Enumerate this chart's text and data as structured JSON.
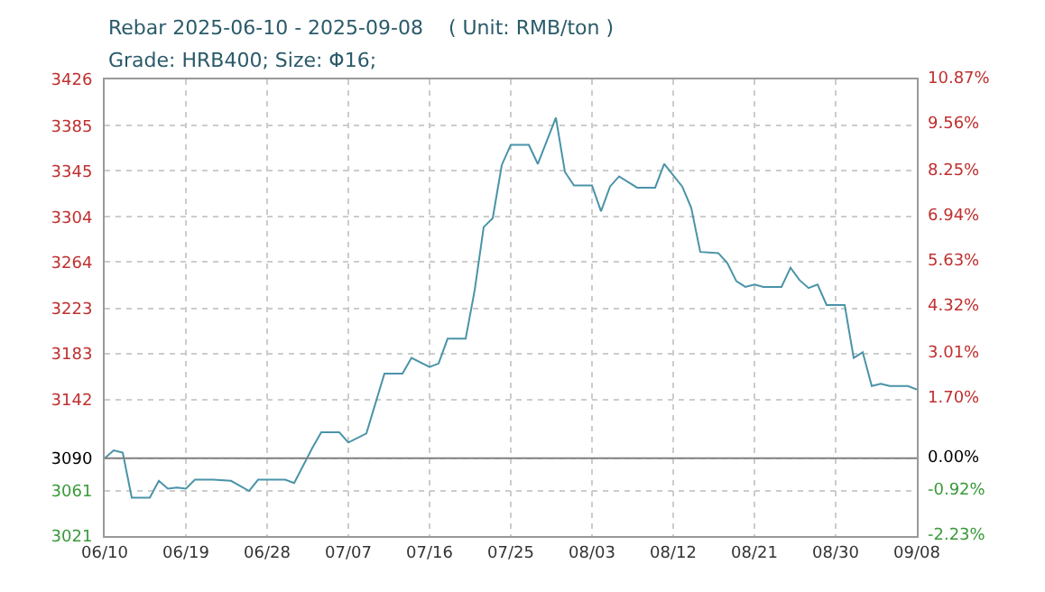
{
  "chart_data": {
    "type": "line",
    "title": "Rebar 2025-06-10 - 2025-09-08    ( Unit: RMB/ton )",
    "subtitle": "Grade: HRB400; Size: Φ16;",
    "x": [
      "2025-06-10",
      "2025-06-11",
      "2025-06-12",
      "2025-06-13",
      "2025-06-15",
      "2025-06-16",
      "2025-06-17",
      "2025-06-18",
      "2025-06-19",
      "2025-06-20",
      "2025-06-22",
      "2025-06-24",
      "2025-06-26",
      "2025-06-27",
      "2025-06-30",
      "2025-07-01",
      "2025-07-03",
      "2025-07-04",
      "2025-07-06",
      "2025-07-07",
      "2025-07-09",
      "2025-07-11",
      "2025-07-13",
      "2025-07-14",
      "2025-07-16",
      "2025-07-17",
      "2025-07-18",
      "2025-07-20",
      "2025-07-21",
      "2025-07-22",
      "2025-07-23",
      "2025-07-24",
      "2025-07-25",
      "2025-07-27",
      "2025-07-28",
      "2025-07-30",
      "2025-07-31",
      "2025-08-01",
      "2025-08-03",
      "2025-08-04",
      "2025-08-05",
      "2025-08-06",
      "2025-08-08",
      "2025-08-10",
      "2025-08-11",
      "2025-08-13",
      "2025-08-14",
      "2025-08-15",
      "2025-08-17",
      "2025-08-18",
      "2025-08-19",
      "2025-08-20",
      "2025-08-21",
      "2025-08-22",
      "2025-08-24",
      "2025-08-25",
      "2025-08-26",
      "2025-08-27",
      "2025-08-28",
      "2025-08-29",
      "2025-08-31",
      "2025-09-01",
      "2025-09-02",
      "2025-09-03",
      "2025-09-04",
      "2025-09-05",
      "2025-09-07",
      "2025-09-08"
    ],
    "series": [
      {
        "color": "#4a93a8",
        "values": [
          3090,
          3097,
          3095,
          3055,
          3055,
          3070,
          3063,
          3064,
          3063,
          3071,
          3071,
          3070,
          3061,
          3071,
          3071,
          3068,
          3099,
          3113,
          3113,
          3104,
          3112,
          3165,
          3165,
          3179,
          3171,
          3174,
          3196,
          3196,
          3239,
          3295,
          3303,
          3350,
          3368,
          3368,
          3351,
          3392,
          3344,
          3332,
          3332,
          3309,
          3331,
          3340,
          3330,
          3330,
          3351,
          3331,
          3312,
          3273,
          3272,
          3263,
          3247,
          3242,
          3244,
          3242,
          3242,
          3259,
          3248,
          3241,
          3244,
          3226,
          3226,
          3179,
          3184,
          3154,
          3156,
          3154,
          3154,
          3151
        ]
      }
    ],
    "xlim": [
      "2025-06-10",
      "2025-09-08"
    ],
    "xticks": [
      {
        "value": "2025-06-10",
        "label": "06/10"
      },
      {
        "value": "2025-06-19",
        "label": "06/19"
      },
      {
        "value": "2025-06-28",
        "label": "06/28"
      },
      {
        "value": "2025-07-07",
        "label": "07/07"
      },
      {
        "value": "2025-07-16",
        "label": "07/16"
      },
      {
        "value": "2025-07-25",
        "label": "07/25"
      },
      {
        "value": "2025-08-03",
        "label": "08/03"
      },
      {
        "value": "2025-08-12",
        "label": "08/12"
      },
      {
        "value": "2025-08-21",
        "label": "08/21"
      },
      {
        "value": "2025-08-30",
        "label": "08/30"
      },
      {
        "value": "2025-09-08",
        "label": "09/08"
      }
    ],
    "ylim": [
      3021,
      3426
    ],
    "yticks": [
      3021,
      3061,
      3090,
      3142,
      3183,
      3223,
      3264,
      3304,
      3345,
      3385,
      3426
    ],
    "y2lim": [
      -2.23,
      10.87
    ],
    "y2ticks": [
      {
        "value": -2.23,
        "label": "-2.23%"
      },
      {
        "value": -0.92,
        "label": "-0.92%"
      },
      {
        "value": 0,
        "label": "0.00%"
      },
      {
        "value": 1.7,
        "label": "1.70%"
      },
      {
        "value": 3.01,
        "label": "3.01%"
      },
      {
        "value": 4.32,
        "label": "4.32%"
      },
      {
        "value": 5.63,
        "label": "5.63%"
      },
      {
        "value": 6.94,
        "label": "6.94%"
      },
      {
        "value": 8.25,
        "label": "8.25%"
      },
      {
        "value": 9.56,
        "label": "9.56%"
      },
      {
        "value": 10.87,
        "label": "10.87%"
      }
    ],
    "ref_lines": [
      {
        "axis": "y",
        "value": 3090,
        "color": "#808080"
      }
    ],
    "grid": true
  }
}
